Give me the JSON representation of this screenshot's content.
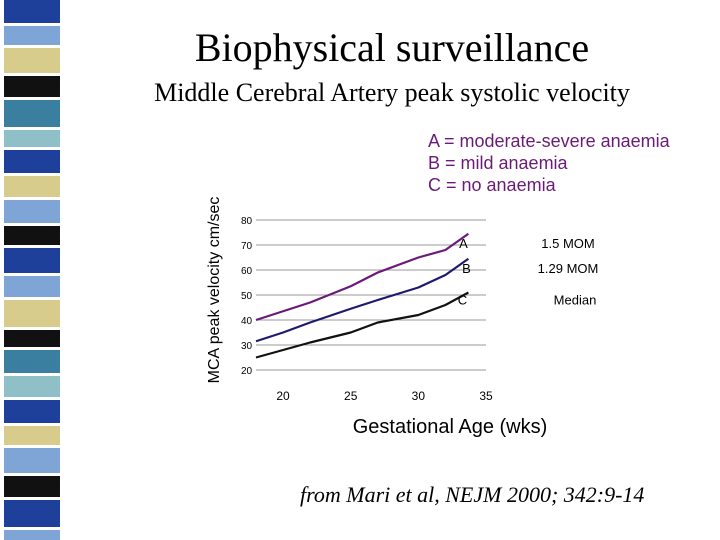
{
  "title": "Biophysical surveillance",
  "subtitle": "Middle Cerebral Artery peak systolic velocity",
  "legend": [
    "A = moderate-severe anaemia",
    "B = mild anaemia",
    "C = no anaemia"
  ],
  "citation": "from Mari et al, NEJM 2000; 342:9-14",
  "chart_data": {
    "type": "line",
    "xlabel": "Gestational Age  (wks)",
    "ylabel": "MCA peak velocity cm/sec",
    "xlim": [
      18,
      35
    ],
    "ylim": [
      20,
      80
    ],
    "xticks": [
      20,
      25,
      30,
      35
    ],
    "yticks": [
      20,
      30,
      40,
      50,
      60,
      70,
      80
    ],
    "grid": "horizontal",
    "series": [
      {
        "name": "A",
        "annotation": "1.5 MOM",
        "color": "#6b1a7a",
        "x": [
          18,
          20,
          22,
          25,
          27,
          30,
          32,
          33.7
        ],
        "y": [
          40,
          43.5,
          47,
          53.5,
          59,
          65,
          68,
          74.5
        ]
      },
      {
        "name": "B",
        "annotation": "1.29 MOM",
        "color": "#1c1c6e",
        "x": [
          18,
          20,
          22,
          25,
          27,
          30,
          32,
          33.7
        ],
        "y": [
          31.5,
          35,
          39,
          44.5,
          48,
          53,
          58,
          64.5
        ]
      },
      {
        "name": "C",
        "annotation": "Median",
        "color": "#111111",
        "x": [
          18,
          20,
          22,
          25,
          27,
          30,
          32,
          33.7
        ],
        "y": [
          25,
          28,
          31,
          35,
          39,
          42,
          46,
          51
        ]
      }
    ]
  },
  "colors": {
    "stripe": [
      "#1e3f9a",
      "#7fa4d6",
      "#d8cc8c",
      "#111111",
      "#3a7fa0",
      "#8fc0c8",
      "#1e3f9a",
      "#d8cc8c",
      "#7fa4d6",
      "#111111"
    ]
  }
}
